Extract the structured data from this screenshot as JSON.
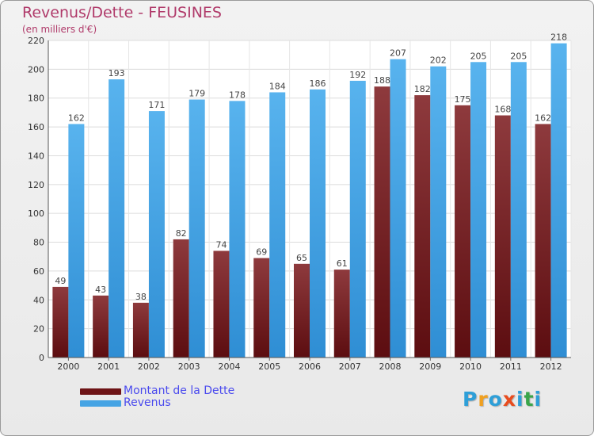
{
  "title": "Revenus/Dette - FEUSINES",
  "subtitle": "(en milliers d'€)",
  "colors": {
    "dette": "#7a1f22",
    "revenus": "#46a4e4",
    "title": "#b03a6a",
    "legend_text": "#4a4aee"
  },
  "legend": [
    {
      "label": "Montant de la Dette",
      "color": "#6e1416"
    },
    {
      "label": "Revenus",
      "color": "#46a4e4"
    }
  ],
  "logo": {
    "letters": [
      "P",
      "r",
      "o",
      "x",
      "i",
      "t",
      "i"
    ],
    "colors": [
      "#2e9fd8",
      "#f0a020",
      "#2e9fd8",
      "#e84c1e",
      "#2e9fd8",
      "#3aa54a",
      "#2e9fd8"
    ]
  },
  "chart_data": {
    "type": "bar",
    "title": "Revenus/Dette - FEUSINES",
    "subtitle": "(en milliers d'€)",
    "categories": [
      "2000",
      "2001",
      "2002",
      "2003",
      "2004",
      "2005",
      "2006",
      "2007",
      "2008",
      "2009",
      "2010",
      "2011",
      "2012"
    ],
    "series": [
      {
        "name": "Montant de la Dette",
        "values": [
          49,
          43,
          38,
          82,
          74,
          69,
          65,
          61,
          188,
          182,
          175,
          168,
          162
        ]
      },
      {
        "name": "Revenus",
        "values": [
          162,
          193,
          171,
          179,
          178,
          184,
          186,
          192,
          207,
          202,
          205,
          205,
          218
        ]
      }
    ],
    "ylim": [
      0,
      220
    ],
    "yticks": [
      0,
      20,
      40,
      60,
      80,
      100,
      120,
      140,
      160,
      180,
      200,
      220
    ],
    "grid": true,
    "legend_position": "bottom-left"
  }
}
